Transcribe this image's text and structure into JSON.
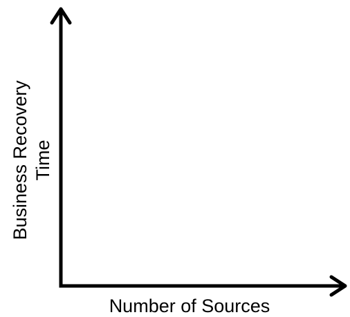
{
  "diagram": {
    "x_axis_label": "Number of Sources",
    "y_axis_label_line1": "Business Recovery",
    "y_axis_label_line2": "Time"
  }
}
